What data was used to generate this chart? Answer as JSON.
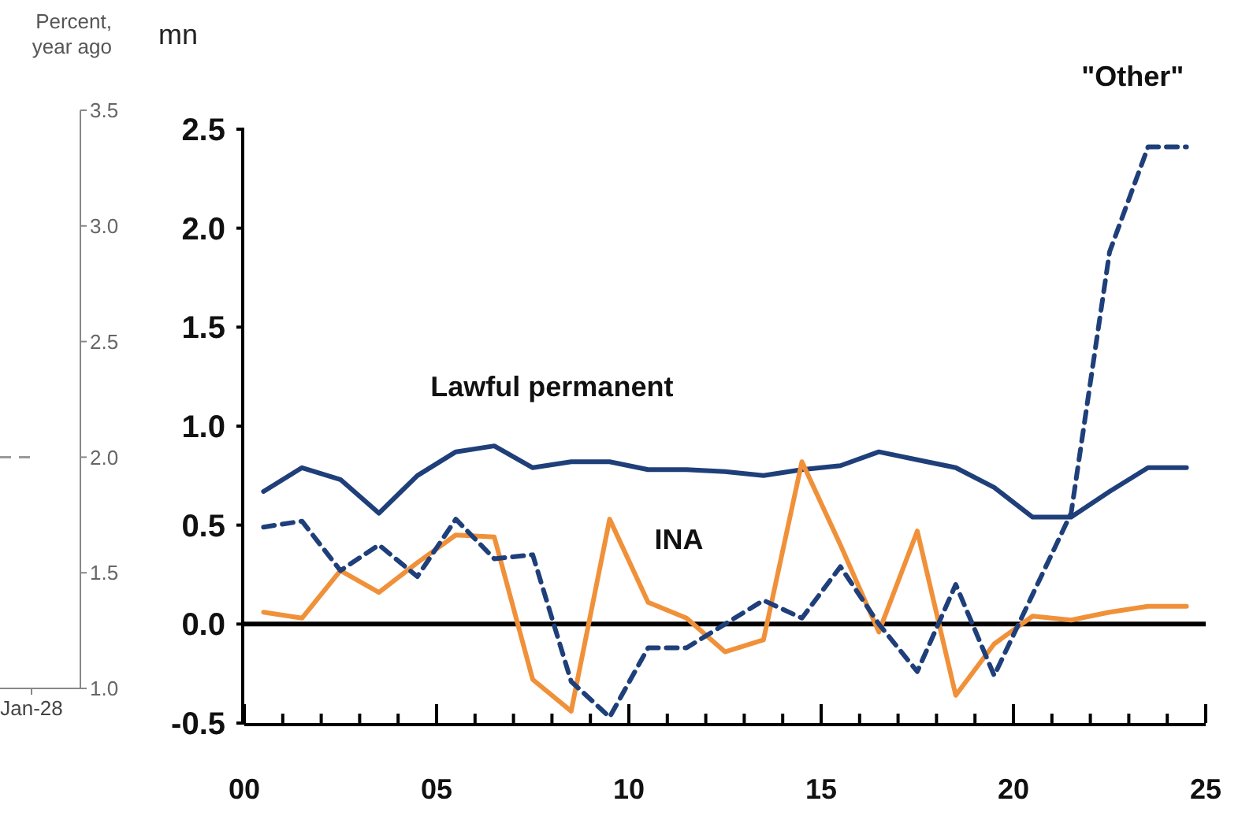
{
  "chart_data": [
    {
      "type": "line",
      "ylabel": "Percent, year ago",
      "categories": [
        "Jan-28"
      ],
      "ylim": [
        1.0,
        3.5
      ],
      "yticks": [
        {
          "value": 1.0,
          "label": "1.0"
        },
        {
          "value": 1.5,
          "label": "1.5"
        },
        {
          "value": 2.0,
          "label": "2.0"
        },
        {
          "value": 2.5,
          "label": "2.5"
        },
        {
          "value": 3.0,
          "label": "3.0"
        },
        {
          "value": 3.5,
          "label": "3.5"
        }
      ],
      "ref_lines": [
        {
          "axis": "y",
          "value": 2.0,
          "color": "#9a9a9a",
          "line_style": "dashed"
        }
      ]
    },
    {
      "type": "line",
      "ylabel": "mn",
      "x": [
        0.5,
        1.5,
        2.5,
        3.5,
        4.5,
        5.5,
        6.5,
        7.5,
        8.5,
        9.5,
        10.5,
        11.5,
        12.5,
        13.5,
        14.5,
        15.5,
        16.5,
        17.5,
        18.5,
        19.5,
        20.5,
        21.5,
        22.5,
        23.5,
        24.5
      ],
      "xlim": [
        0,
        25
      ],
      "ylim": [
        -0.5,
        2.5
      ],
      "xticks": [
        {
          "value": 0,
          "label": "00"
        },
        {
          "value": 1,
          "label": null
        },
        {
          "value": 2,
          "label": null
        },
        {
          "value": 3,
          "label": null
        },
        {
          "value": 4,
          "label": null
        },
        {
          "value": 5,
          "label": "05"
        },
        {
          "value": 6,
          "label": null
        },
        {
          "value": 7,
          "label": null
        },
        {
          "value": 8,
          "label": null
        },
        {
          "value": 9,
          "label": null
        },
        {
          "value": 10,
          "label": "10"
        },
        {
          "value": 11,
          "label": null
        },
        {
          "value": 12,
          "label": null
        },
        {
          "value": 13,
          "label": null
        },
        {
          "value": 14,
          "label": null
        },
        {
          "value": 15,
          "label": "15"
        },
        {
          "value": 16,
          "label": null
        },
        {
          "value": 17,
          "label": null
        },
        {
          "value": 18,
          "label": null
        },
        {
          "value": 19,
          "label": null
        },
        {
          "value": 20,
          "label": "20"
        },
        {
          "value": 21,
          "label": null
        },
        {
          "value": 22,
          "label": null
        },
        {
          "value": 23,
          "label": null
        },
        {
          "value": 24,
          "label": null
        },
        {
          "value": 25,
          "label": "25"
        }
      ],
      "yticks": [
        {
          "value": -0.5,
          "label": "-0.5"
        },
        {
          "value": 0,
          "label": "0.0"
        },
        {
          "value": 0.5,
          "label": "0.5"
        },
        {
          "value": 1.0,
          "label": "1.0"
        },
        {
          "value": 1.5,
          "label": "1.5"
        },
        {
          "value": 2.0,
          "label": "2.0"
        },
        {
          "value": 2.5,
          "label": "2.5"
        }
      ],
      "ref_lines": [
        {
          "axis": "y",
          "value": 0,
          "color": "#000000"
        }
      ],
      "series": [
        {
          "name": "Lawful permanent",
          "color": "#1f3f7a",
          "line_style": "solid",
          "values": [
            0.67,
            0.79,
            0.73,
            0.56,
            0.75,
            0.87,
            0.9,
            0.79,
            0.82,
            0.82,
            0.78,
            0.78,
            0.77,
            0.75,
            0.78,
            0.8,
            0.87,
            0.83,
            0.79,
            0.69,
            0.54,
            0.54,
            0.67,
            0.79,
            0.79
          ]
        },
        {
          "name": "INA",
          "color": "#f0913a",
          "line_style": "solid",
          "values": [
            0.06,
            0.03,
            0.27,
            0.16,
            0.31,
            0.45,
            0.44,
            -0.28,
            -0.44,
            0.53,
            0.11,
            0.03,
            -0.14,
            -0.08,
            0.82,
            0.4,
            -0.04,
            0.47,
            -0.36,
            -0.1,
            0.04,
            0.02,
            0.06,
            0.09,
            0.09
          ]
        },
        {
          "name": "\"Other\"",
          "color": "#1f3f7a",
          "line_style": "dashed",
          "values": [
            0.49,
            0.52,
            0.27,
            0.4,
            0.24,
            0.53,
            0.33,
            0.35,
            -0.29,
            -0.47,
            -0.12,
            -0.12,
            0.0,
            0.12,
            0.03,
            0.29,
            0.0,
            -0.24,
            0.2,
            -0.26,
            0.15,
            0.56,
            1.88,
            2.41,
            2.41
          ]
        }
      ]
    }
  ]
}
